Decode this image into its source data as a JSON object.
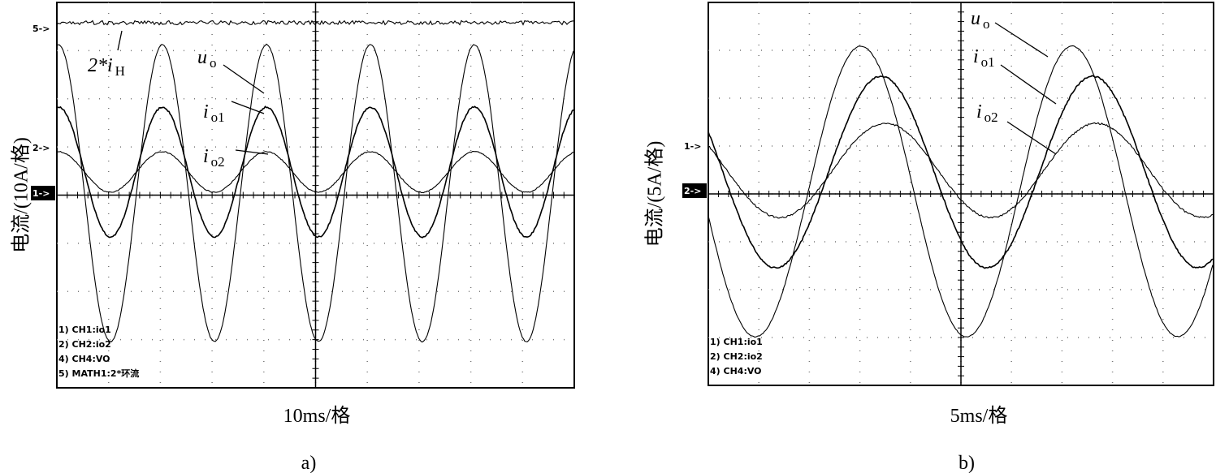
{
  "panels": [
    {
      "markers": [
        "5->",
        "2->",
        "1->"
      ],
      "annotations": [
        {
          "text": "2*i",
          "sub": "H"
        },
        {
          "text": "u",
          "sub": "o"
        },
        {
          "text": "i",
          "sub": "o1"
        },
        {
          "text": "i",
          "sub": "o2"
        }
      ],
      "legend": [
        "1) CH1:io1",
        "2) CH2:io2",
        "4) CH4:VO",
        "5) MATH1:2*环流"
      ],
      "y_label": "电流/(10A/格)",
      "x_label": "10ms/格",
      "caption": "a)"
    },
    {
      "markers": [
        "1->",
        "2->"
      ],
      "annotations": [
        {
          "text": "u",
          "sub": "o"
        },
        {
          "text": "i",
          "sub": "o1"
        },
        {
          "text": "i",
          "sub": "o2"
        }
      ],
      "legend": [
        "1) CH1:io1",
        "2) CH2:io2",
        "4) CH4:VO"
      ],
      "y_label": "电流/(5A/格)",
      "x_label": "5ms/格",
      "caption": "b)"
    }
  ]
}
